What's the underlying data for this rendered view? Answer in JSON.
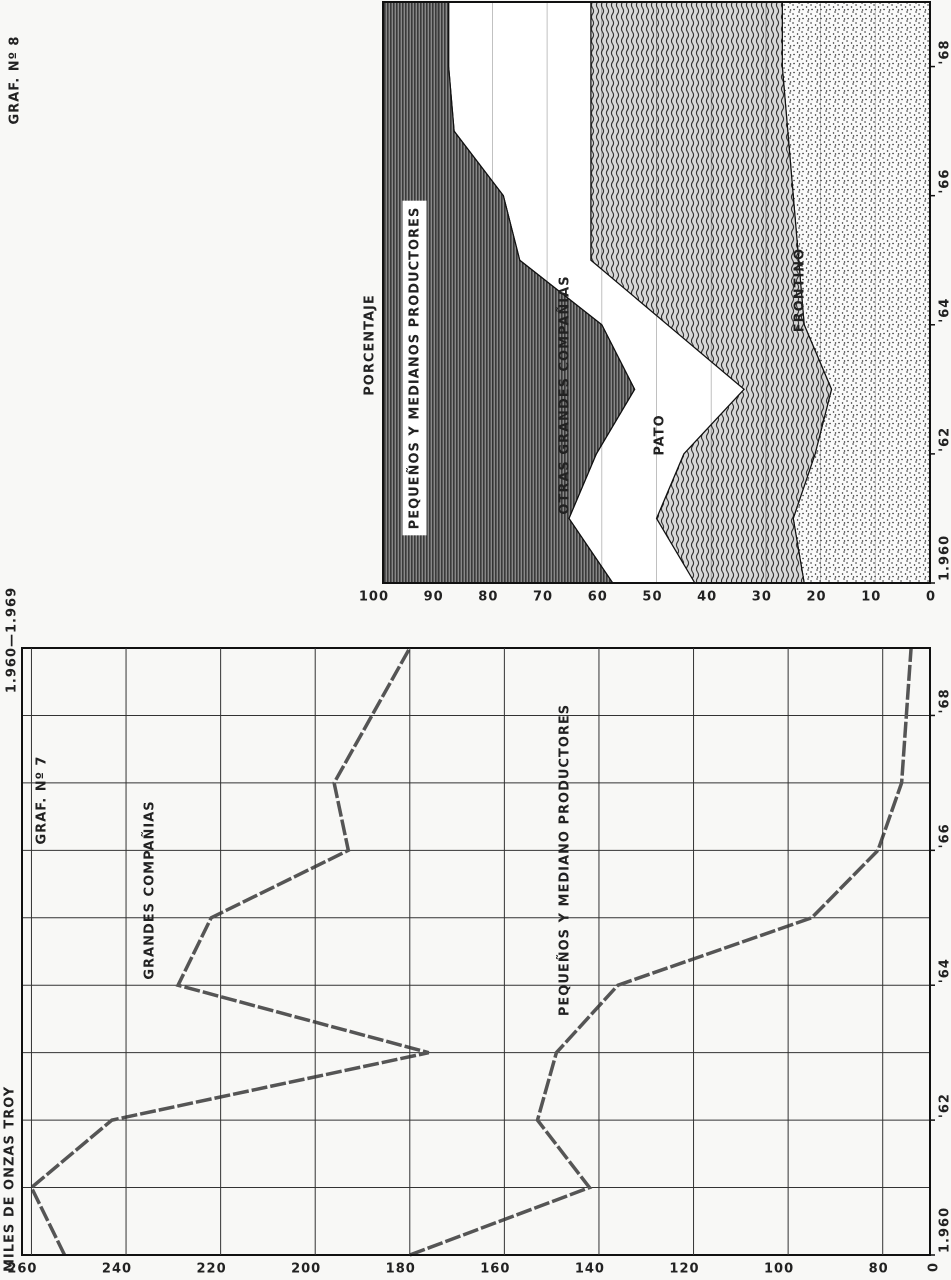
{
  "subtitle": "1.960—1.969",
  "chart_data": [
    {
      "type": "line",
      "title": "GRAF. Nº 7",
      "y_label": "MILES DE ONZAS TROY",
      "axis_origin_label": "0",
      "x": [
        1960,
        1961,
        1962,
        1963,
        1964,
        1965,
        1966,
        1967,
        1968,
        1969
      ],
      "xlim": [
        1960,
        1969
      ],
      "xticks": [
        {
          "value": 1960,
          "label": "1.960"
        },
        {
          "value": 1962,
          "label": "'62"
        },
        {
          "value": 1964,
          "label": "'64"
        },
        {
          "value": 1966,
          "label": "'66"
        },
        {
          "value": 1968,
          "label": "'68"
        }
      ],
      "ylim": [
        70,
        262
      ],
      "yticks": [
        80,
        100,
        120,
        140,
        160,
        180,
        200,
        220,
        240,
        260
      ],
      "grid": true,
      "series": [
        {
          "name": "GRANDES COMPAÑIAS",
          "color": "#555555",
          "values": [
            253,
            260,
            243,
            176,
            229,
            222,
            193,
            196,
            188,
            180
          ]
        },
        {
          "name": "PEQUEÑOS Y MEDIANO PRODUCTORES",
          "color": "#555555",
          "values": [
            180,
            142,
            153,
            149,
            136,
            95,
            81,
            76,
            75,
            74
          ]
        }
      ]
    },
    {
      "type": "area",
      "stacked": true,
      "title": "GRAF. Nº 8",
      "y_label": "PORCENTAJE",
      "x": [
        1960,
        1961,
        1962,
        1963,
        1964,
        1965,
        1966,
        1967,
        1968,
        1969
      ],
      "xlim": [
        1960,
        1969
      ],
      "xticks": [
        {
          "value": 1960,
          "label": "1.960"
        },
        {
          "value": 1962,
          "label": "'62"
        },
        {
          "value": 1964,
          "label": "'64"
        },
        {
          "value": 1966,
          "label": "'66"
        },
        {
          "value": 1968,
          "label": "'68"
        }
      ],
      "ylim": [
        0,
        100
      ],
      "yticks": [
        0,
        10,
        20,
        30,
        40,
        50,
        60,
        70,
        80,
        90,
        100
      ],
      "grid": true,
      "series": [
        {
          "name": "FRONTINO",
          "color": "#222222",
          "pattern": "dots",
          "values": [
            23,
            25,
            21,
            18,
            23,
            24,
            25,
            26,
            27,
            27
          ]
        },
        {
          "name": "PATO",
          "color": "#333333",
          "pattern": "waves",
          "values": [
            20,
            25,
            24,
            16,
            25,
            38,
            37,
            36,
            35,
            35
          ]
        },
        {
          "name": "OTRAS GRANDES COMPAÑIAS",
          "color": "#ffffff",
          "pattern": "none",
          "values": [
            15,
            16,
            16,
            20,
            12,
            13,
            16,
            25,
            26,
            26
          ]
        },
        {
          "name": "PEQUEÑOS Y MEDIANOS PRODUCTORES",
          "color": "#3a3a3a",
          "pattern": "lines",
          "values": [
            42,
            34,
            39,
            46,
            40,
            25,
            22,
            13,
            12,
            12
          ]
        }
      ]
    }
  ]
}
